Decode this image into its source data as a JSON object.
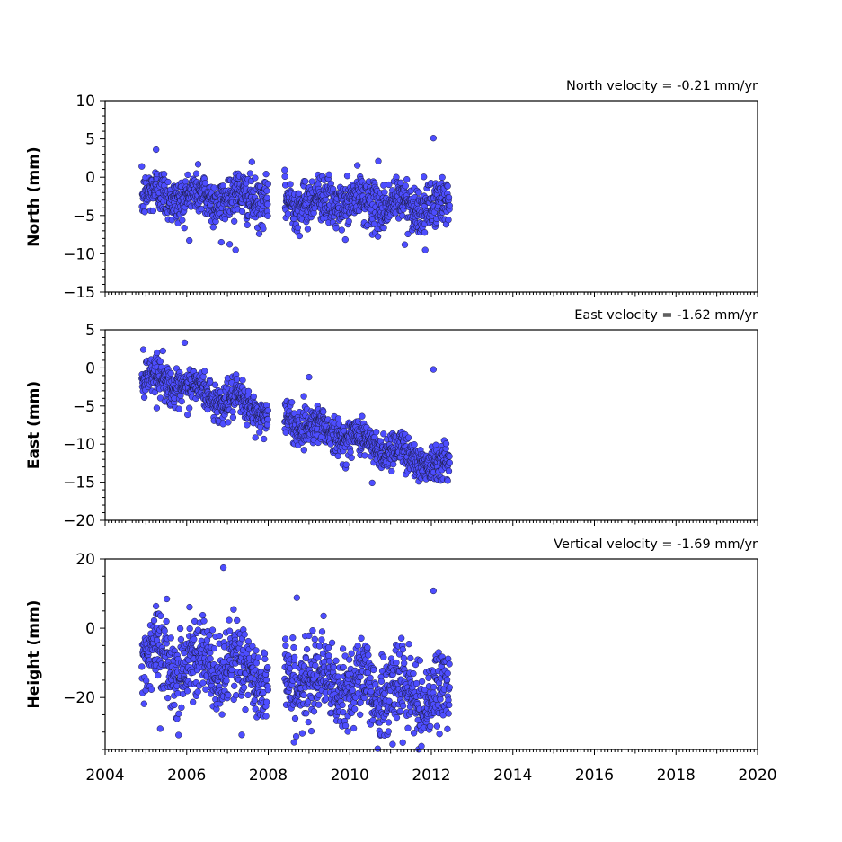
{
  "chart_data": [
    {
      "type": "scatter",
      "ylabel": "North (mm)",
      "annotation": "North velocity = -0.21 mm/yr",
      "xlim": [
        2004,
        2020
      ],
      "ylim": [
        -15,
        10
      ],
      "yticks": [
        10,
        5,
        0,
        -5,
        -10,
        -15
      ],
      "ytick_labels": [
        "10",
        "5",
        "0",
        "−5",
        "−10",
        "−15"
      ],
      "trend": {
        "velocity_mm_per_yr": -0.21,
        "value_at_2005": -2.3,
        "scatter_sd": 1.5
      },
      "data_span": [
        2004.9,
        2012.45
      ],
      "gap": [
        2008.0,
        2008.4
      ],
      "outliers": [
        {
          "x": 2005.25,
          "y": 3.6
        },
        {
          "x": 2007.6,
          "y": 2.0
        },
        {
          "x": 2010.7,
          "y": 2.1
        },
        {
          "x": 2012.05,
          "y": 5.1
        },
        {
          "x": 2007.2,
          "y": -9.5
        },
        {
          "x": 2011.85,
          "y": -9.5
        },
        {
          "x": 2011.35,
          "y": -8.8
        },
        {
          "x": 2006.85,
          "y": -8.5
        }
      ],
      "series": [
        {
          "color": "#4d4dff",
          "edgecolor": "#1a1a3a"
        }
      ]
    },
    {
      "type": "scatter",
      "ylabel": "East (mm)",
      "annotation": "East velocity = -1.62 mm/yr",
      "xlim": [
        2004,
        2020
      ],
      "ylim": [
        -20,
        5
      ],
      "yticks": [
        5,
        0,
        -5,
        -10,
        -15,
        -20
      ],
      "ytick_labels": [
        "5",
        "0",
        "−5",
        "−10",
        "−15",
        "−20"
      ],
      "trend": {
        "velocity_mm_per_yr": -1.62,
        "value_at_2005": -1.0,
        "scatter_sd": 1.2
      },
      "data_span": [
        2004.9,
        2012.45
      ],
      "gap": [
        2008.0,
        2008.4
      ],
      "outliers": [
        {
          "x": 2005.95,
          "y": 3.3
        },
        {
          "x": 2012.05,
          "y": -0.2
        },
        {
          "x": 2009.0,
          "y": -1.2
        },
        {
          "x": 2010.55,
          "y": -15.1
        },
        {
          "x": 2012.4,
          "y": -14.8
        }
      ],
      "series": [
        {
          "color": "#4d4dff",
          "edgecolor": "#1a1a3a"
        }
      ]
    },
    {
      "type": "scatter",
      "ylabel": "Height (mm)",
      "annotation": "Vertical velocity = -1.69 mm/yr",
      "xlim": [
        2004,
        2020
      ],
      "ylim": [
        -35,
        20
      ],
      "yticks": [
        20,
        0,
        -20
      ],
      "ytick_labels": [
        "20",
        "0",
        "−20"
      ],
      "xticks": [
        2004,
        2006,
        2008,
        2010,
        2012,
        2014,
        2016,
        2018,
        2020
      ],
      "xtick_labels": [
        "2004",
        "2006",
        "2008",
        "2010",
        "2012",
        "2014",
        "2016",
        "2018",
        "2020"
      ],
      "trend": {
        "velocity_mm_per_yr": -1.69,
        "value_at_2005": -8.0,
        "scatter_sd": 5.5
      },
      "data_span": [
        2004.9,
        2012.45
      ],
      "gap": [
        2008.0,
        2008.4
      ],
      "outliers": [
        {
          "x": 2006.9,
          "y": 17.5
        },
        {
          "x": 2012.05,
          "y": 10.8
        },
        {
          "x": 2008.7,
          "y": 8.8
        },
        {
          "x": 2007.35,
          "y": -30.8
        },
        {
          "x": 2009.95,
          "y": -29.8
        },
        {
          "x": 2011.05,
          "y": -33.5
        },
        {
          "x": 2005.35,
          "y": -29.0
        },
        {
          "x": 2011.3,
          "y": -33.0
        },
        {
          "x": 2012.2,
          "y": -30.5
        }
      ],
      "series": [
        {
          "color": "#4d4dff",
          "edgecolor": "#1a1a3a"
        }
      ]
    }
  ]
}
